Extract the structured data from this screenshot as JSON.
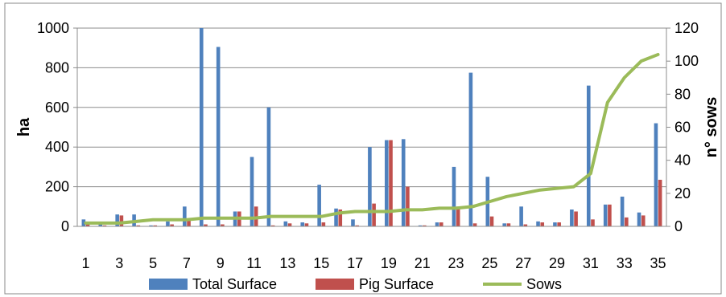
{
  "chart_data": {
    "type": "bar",
    "categories": [
      "1",
      "2",
      "3",
      "4",
      "5",
      "6",
      "7",
      "8",
      "9",
      "10",
      "11",
      "12",
      "13",
      "14",
      "15",
      "16",
      "17",
      "18",
      "19",
      "20",
      "21",
      "22",
      "23",
      "24",
      "25",
      "26",
      "27",
      "28",
      "29",
      "30",
      "31",
      "32",
      "33",
      "34",
      "35"
    ],
    "x_tick_labels": [
      "1",
      "3",
      "5",
      "7",
      "9",
      "11",
      "13",
      "15",
      "17",
      "19",
      "21",
      "23",
      "25",
      "27",
      "29",
      "31",
      "33",
      "35"
    ],
    "ylabel": "ha",
    "y2label": "n° sows",
    "ylim": [
      0,
      1000
    ],
    "y2lim": [
      0,
      120
    ],
    "y_ticks": [
      "0",
      "200",
      "400",
      "600",
      "800",
      "1000"
    ],
    "y2_ticks": [
      "0",
      "20",
      "40",
      "60",
      "80",
      "100",
      "120"
    ],
    "grid": "horizontal",
    "legend_position": "bottom",
    "series": [
      {
        "name": "Total Surface",
        "kind": "bar",
        "axis": "left",
        "color": "#4f81bd",
        "values": [
          35,
          10,
          60,
          60,
          5,
          25,
          100,
          1000,
          905,
          75,
          350,
          600,
          25,
          20,
          210,
          90,
          35,
          400,
          435,
          440,
          5,
          20,
          300,
          775,
          250,
          15,
          100,
          25,
          20,
          85,
          710,
          110,
          150,
          70,
          520
        ]
      },
      {
        "name": "Pig Surface",
        "kind": "bar",
        "axis": "left",
        "color": "#c0504d",
        "values": [
          15,
          5,
          55,
          5,
          5,
          10,
          30,
          10,
          10,
          75,
          100,
          5,
          15,
          15,
          20,
          85,
          5,
          115,
          435,
          200,
          5,
          20,
          100,
          15,
          50,
          15,
          10,
          20,
          20,
          75,
          35,
          110,
          45,
          55,
          235
        ]
      },
      {
        "name": "Sows",
        "kind": "line",
        "axis": "right",
        "color": "#9bbb59",
        "values": [
          2,
          2,
          2,
          3,
          4,
          4,
          4,
          5,
          5,
          5,
          5,
          6,
          6,
          6,
          6,
          8,
          9,
          9,
          9,
          10,
          10,
          11,
          11,
          12,
          15,
          18,
          20,
          22,
          23,
          24,
          32,
          75,
          90,
          100,
          104
        ]
      }
    ]
  }
}
